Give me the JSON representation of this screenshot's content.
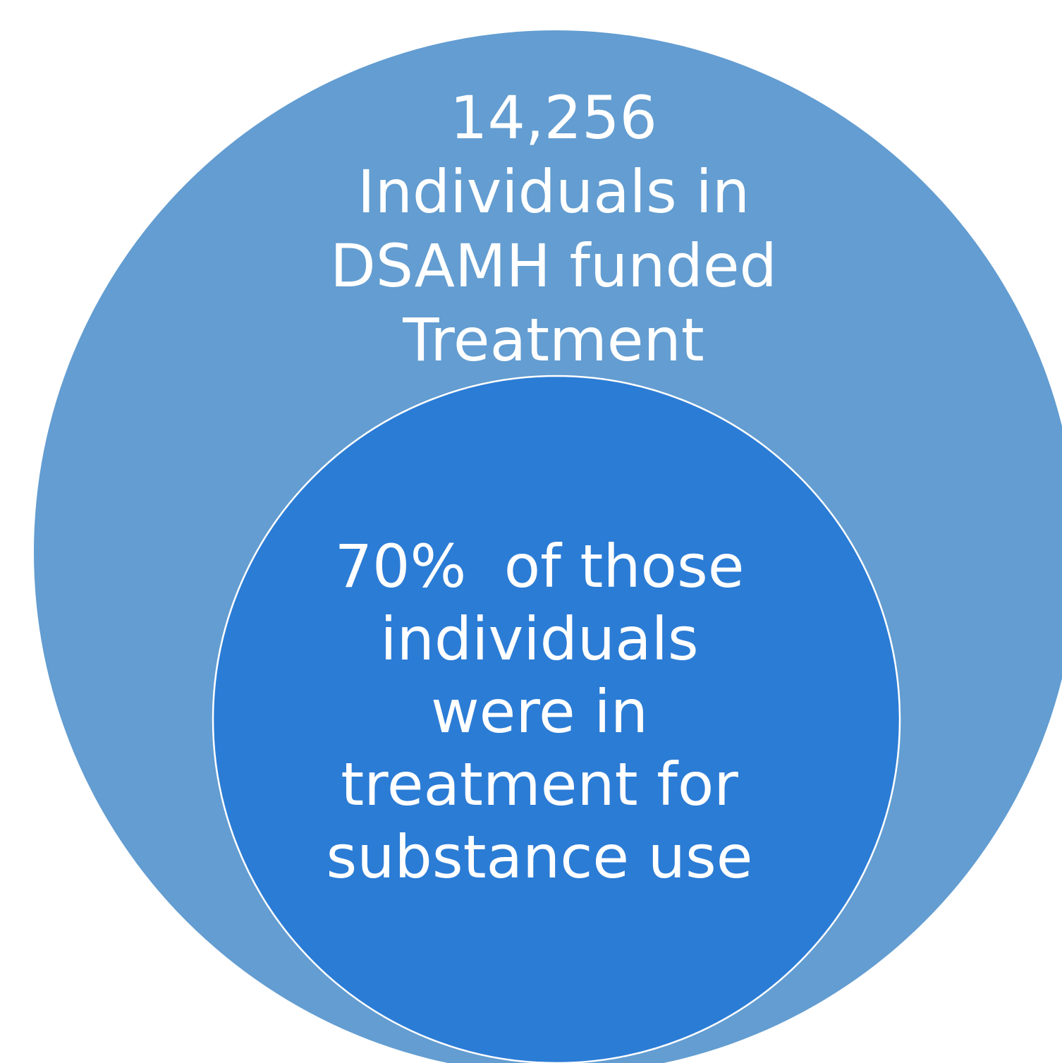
{
  "colors": {
    "outer_circle": "#639dd1",
    "inner_circle": "#2b7cd5",
    "inner_outline": "#ffffff",
    "text": "#ffffff",
    "background": "#ffffff"
  },
  "outer": {
    "lines": [
      "14,256",
      "Individuals in",
      "DSAMH funded",
      "Treatment"
    ]
  },
  "inner": {
    "lines": [
      "70%  of those",
      "individuals",
      "were in",
      "treatment for",
      "substance use"
    ]
  }
}
